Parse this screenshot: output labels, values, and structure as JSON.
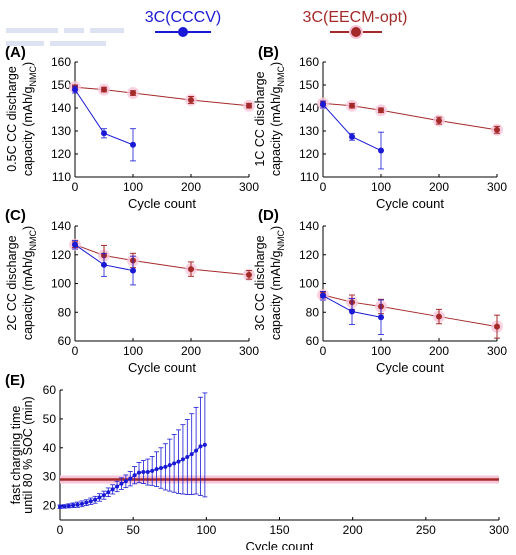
{
  "legend": [
    {
      "label": "3C(CCCV)",
      "color": "#1a1ad6"
    },
    {
      "label": "3C(EECM-opt)",
      "color": "#a52a2a"
    }
  ],
  "colors": {
    "cccv": "#1a1ad6",
    "eecm": "#a52a2a",
    "eecm_halo": "#f7c6d8"
  },
  "chart_data": [
    {
      "type": "line",
      "panel_label": "(A)",
      "xlabel": "Cycle count",
      "ylabel_lines": [
        "0.5C CC discharge",
        "capacity (mAh/g",
        "NMC",
        ")"
      ],
      "xlim": [
        0,
        300
      ],
      "ylim": [
        110,
        160
      ],
      "xticks": [
        0,
        100,
        200,
        300
      ],
      "yticks": [
        110,
        120,
        130,
        140,
        150,
        160
      ],
      "series": [
        {
          "name": "3C(CCCV)",
          "x": [
            0,
            50,
            100
          ],
          "y": [
            148,
            129,
            124
          ],
          "err": [
            1.5,
            2,
            7
          ]
        },
        {
          "name": "3C(EECM-opt)",
          "x": [
            0,
            50,
            100,
            200,
            300
          ],
          "y": [
            149,
            148,
            146.5,
            143.5,
            141
          ],
          "err": [
            1,
            1,
            1,
            1.5,
            1
          ]
        }
      ]
    },
    {
      "type": "line",
      "panel_label": "(B)",
      "xlabel": "Cycle count",
      "ylabel_lines": [
        "1C CC discharge",
        "capacity (mAh/g",
        "NMC",
        ")"
      ],
      "xlim": [
        0,
        300
      ],
      "ylim": [
        110,
        160
      ],
      "xticks": [
        0,
        100,
        200,
        300
      ],
      "yticks": [
        110,
        120,
        130,
        140,
        150,
        160
      ],
      "series": [
        {
          "name": "3C(CCCV)",
          "x": [
            0,
            50,
            100
          ],
          "y": [
            141.5,
            127.5,
            121.5
          ],
          "err": [
            1.5,
            1.5,
            8
          ]
        },
        {
          "name": "3C(EECM-opt)",
          "x": [
            0,
            50,
            100,
            200,
            300
          ],
          "y": [
            142,
            141,
            139,
            134.5,
            130.5
          ],
          "err": [
            1,
            1,
            1,
            1.5,
            1.5
          ]
        }
      ]
    },
    {
      "type": "line",
      "panel_label": "(C)",
      "xlabel": "Cycle count",
      "ylabel_lines": [
        "2C CC discharge",
        "capacity (mAh/g",
        "NMC",
        ")"
      ],
      "xlim": [
        0,
        300
      ],
      "ylim": [
        60,
        140
      ],
      "xticks": [
        0,
        100,
        200,
        300
      ],
      "yticks": [
        60,
        80,
        100,
        120,
        140
      ],
      "series": [
        {
          "name": "3C(CCCV)",
          "x": [
            0,
            50,
            100
          ],
          "y": [
            127,
            113,
            109
          ],
          "err": [
            3,
            8,
            10
          ]
        },
        {
          "name": "3C(EECM-opt)",
          "x": [
            0,
            50,
            100,
            200,
            300
          ],
          "y": [
            127,
            119.5,
            116,
            110,
            106
          ],
          "err": [
            2,
            7,
            5,
            5,
            3
          ]
        }
      ]
    },
    {
      "type": "line",
      "panel_label": "(D)",
      "xlabel": "Cycle count",
      "ylabel_lines": [
        "3C CC discharge",
        "capacity (mAh/g",
        "NMC",
        ")"
      ],
      "xlim": [
        0,
        300
      ],
      "ylim": [
        60,
        140
      ],
      "xticks": [
        0,
        100,
        200,
        300
      ],
      "yticks": [
        60,
        80,
        100,
        120,
        140
      ],
      "series": [
        {
          "name": "3C(CCCV)",
          "x": [
            0,
            50,
            100
          ],
          "y": [
            91.5,
            80.5,
            76.5
          ],
          "err": [
            3,
            9,
            12
          ]
        },
        {
          "name": "3C(EECM-opt)",
          "x": [
            0,
            50,
            100,
            200,
            300
          ],
          "y": [
            92,
            87,
            84,
            77,
            70
          ],
          "err": [
            2,
            5,
            5,
            5,
            8
          ]
        }
      ]
    },
    {
      "type": "line",
      "panel_label": "(E)",
      "xlabel": "Cycle count",
      "ylabel_lines": [
        "fast charging time",
        "until 80 % SOC (min)"
      ],
      "xlim": [
        0,
        300
      ],
      "ylim": [
        15,
        60
      ],
      "xticks": [
        0,
        50,
        100,
        150,
        200,
        250,
        300
      ],
      "yticks": [
        20,
        30,
        40,
        50,
        60
      ],
      "series": [
        {
          "name": "3C(CCCV)",
          "x": [
            0,
            3,
            6,
            9,
            12,
            15,
            18,
            21,
            24,
            27,
            30,
            33,
            36,
            39,
            42,
            45,
            48,
            51,
            54,
            57,
            60,
            63,
            66,
            69,
            72,
            75,
            78,
            81,
            84,
            87,
            90,
            93,
            96,
            99
          ],
          "y": [
            19.6,
            19.7,
            19.9,
            20.1,
            20.3,
            20.6,
            21,
            21.5,
            22,
            22.8,
            23.6,
            24.6,
            25.6,
            26.6,
            27.6,
            28.4,
            29.3,
            30.5,
            31.4,
            31.6,
            31.6,
            32,
            32.6,
            33,
            33.4,
            34,
            34.6,
            35.2,
            36,
            36.8,
            37.8,
            39,
            40.5,
            41
          ],
          "err": [
            0.6,
            0.6,
            0.7,
            0.8,
            0.9,
            1,
            1,
            1.1,
            1.2,
            1.3,
            1.4,
            1.5,
            1.6,
            1.8,
            2,
            2.2,
            2.5,
            3,
            3.5,
            4,
            4.5,
            5,
            6,
            7,
            8,
            9,
            10,
            11,
            12,
            13,
            14,
            15,
            17,
            18
          ]
        },
        {
          "name": "3C(EECM-opt)",
          "x": [
            0,
            300
          ],
          "y": [
            29,
            29
          ],
          "err": [
            0,
            0
          ]
        }
      ]
    }
  ]
}
